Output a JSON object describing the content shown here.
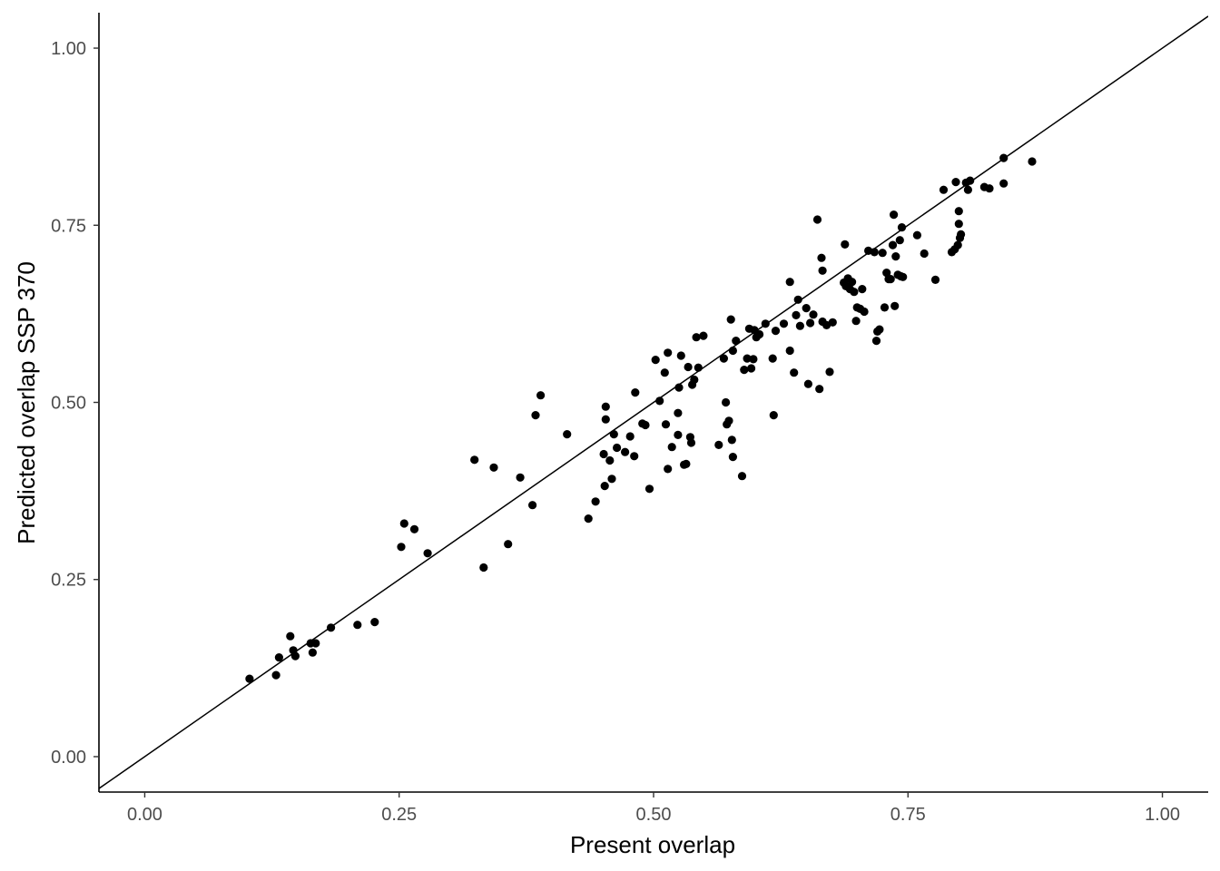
{
  "chart_data": {
    "type": "scatter",
    "title": "",
    "xlabel": "Present overlap",
    "ylabel": "Predicted overlap SSP 370",
    "xlim": [
      -0.045,
      1.045
    ],
    "ylim": [
      -0.05,
      1.05
    ],
    "x_ticks": [
      0,
      0.25,
      0.5,
      0.75,
      1
    ],
    "x_tick_labels": [
      "0.00",
      "0.25",
      "0.50",
      "0.75",
      "1.00"
    ],
    "y_ticks": [
      0,
      0.25,
      0.5,
      0.75,
      1
    ],
    "y_tick_labels": [
      "0.00",
      "0.25",
      "0.50",
      "0.75",
      "1.00"
    ],
    "reference_line": {
      "slope": 1,
      "intercept": 0
    },
    "grid": false,
    "point_color": "#000000",
    "points": [
      [
        0.103,
        0.11
      ],
      [
        0.129,
        0.115
      ],
      [
        0.132,
        0.14
      ],
      [
        0.143,
        0.17
      ],
      [
        0.146,
        0.15
      ],
      [
        0.148,
        0.142
      ],
      [
        0.163,
        0.16
      ],
      [
        0.165,
        0.147
      ],
      [
        0.168,
        0.16
      ],
      [
        0.183,
        0.182
      ],
      [
        0.209,
        0.186
      ],
      [
        0.226,
        0.19
      ],
      [
        0.252,
        0.296
      ],
      [
        0.255,
        0.329
      ],
      [
        0.265,
        0.321
      ],
      [
        0.278,
        0.287
      ],
      [
        0.324,
        0.419
      ],
      [
        0.333,
        0.267
      ],
      [
        0.343,
        0.408
      ],
      [
        0.357,
        0.3
      ],
      [
        0.369,
        0.394
      ],
      [
        0.381,
        0.355
      ],
      [
        0.384,
        0.482
      ],
      [
        0.389,
        0.51
      ],
      [
        0.415,
        0.455
      ],
      [
        0.436,
        0.336
      ],
      [
        0.443,
        0.36
      ],
      [
        0.451,
        0.427
      ],
      [
        0.452,
        0.382
      ],
      [
        0.453,
        0.494
      ],
      [
        0.453,
        0.476
      ],
      [
        0.457,
        0.418
      ],
      [
        0.459,
        0.392
      ],
      [
        0.461,
        0.455
      ],
      [
        0.464,
        0.436
      ],
      [
        0.472,
        0.43
      ],
      [
        0.477,
        0.452
      ],
      [
        0.481,
        0.424
      ],
      [
        0.482,
        0.514
      ],
      [
        0.489,
        0.47
      ],
      [
        0.492,
        0.468
      ],
      [
        0.496,
        0.378
      ],
      [
        0.502,
        0.56
      ],
      [
        0.506,
        0.502
      ],
      [
        0.511,
        0.542
      ],
      [
        0.512,
        0.469
      ],
      [
        0.514,
        0.57
      ],
      [
        0.514,
        0.406
      ],
      [
        0.518,
        0.437
      ],
      [
        0.524,
        0.485
      ],
      [
        0.524,
        0.454
      ],
      [
        0.525,
        0.521
      ],
      [
        0.527,
        0.566
      ],
      [
        0.53,
        0.412
      ],
      [
        0.532,
        0.413
      ],
      [
        0.534,
        0.55
      ],
      [
        0.536,
        0.451
      ],
      [
        0.537,
        0.443
      ],
      [
        0.538,
        0.525
      ],
      [
        0.54,
        0.532
      ],
      [
        0.542,
        0.592
      ],
      [
        0.544,
        0.549
      ],
      [
        0.549,
        0.594
      ],
      [
        0.564,
        0.44
      ],
      [
        0.569,
        0.562
      ],
      [
        0.571,
        0.5
      ],
      [
        0.572,
        0.469
      ],
      [
        0.574,
        0.474
      ],
      [
        0.576,
        0.617
      ],
      [
        0.577,
        0.447
      ],
      [
        0.578,
        0.573
      ],
      [
        0.578,
        0.423
      ],
      [
        0.581,
        0.587
      ],
      [
        0.587,
        0.396
      ],
      [
        0.589,
        0.546
      ],
      [
        0.592,
        0.562
      ],
      [
        0.594,
        0.604
      ],
      [
        0.596,
        0.548
      ],
      [
        0.598,
        0.561
      ],
      [
        0.599,
        0.602
      ],
      [
        0.601,
        0.592
      ],
      [
        0.604,
        0.596
      ],
      [
        0.61,
        0.611
      ],
      [
        0.617,
        0.562
      ],
      [
        0.618,
        0.482
      ],
      [
        0.62,
        0.601
      ],
      [
        0.628,
        0.611
      ],
      [
        0.634,
        0.67
      ],
      [
        0.634,
        0.573
      ],
      [
        0.638,
        0.542
      ],
      [
        0.64,
        0.623
      ],
      [
        0.642,
        0.645
      ],
      [
        0.644,
        0.608
      ],
      [
        0.65,
        0.633
      ],
      [
        0.652,
        0.526
      ],
      [
        0.654,
        0.612
      ],
      [
        0.657,
        0.624
      ],
      [
        0.661,
        0.758
      ],
      [
        0.663,
        0.519
      ],
      [
        0.665,
        0.704
      ],
      [
        0.666,
        0.686
      ],
      [
        0.666,
        0.614
      ],
      [
        0.67,
        0.609
      ],
      [
        0.673,
        0.543
      ],
      [
        0.676,
        0.613
      ],
      [
        0.687,
        0.669
      ],
      [
        0.688,
        0.723
      ],
      [
        0.689,
        0.664
      ],
      [
        0.691,
        0.675
      ],
      [
        0.693,
        0.66
      ],
      [
        0.695,
        0.67
      ],
      [
        0.697,
        0.656
      ],
      [
        0.699,
        0.615
      ],
      [
        0.7,
        0.634
      ],
      [
        0.703,
        0.632
      ],
      [
        0.705,
        0.66
      ],
      [
        0.707,
        0.628
      ],
      [
        0.711,
        0.714
      ],
      [
        0.717,
        0.712
      ],
      [
        0.719,
        0.587
      ],
      [
        0.72,
        0.6
      ],
      [
        0.722,
        0.603
      ],
      [
        0.725,
        0.711
      ],
      [
        0.727,
        0.634
      ],
      [
        0.729,
        0.683
      ],
      [
        0.731,
        0.674
      ],
      [
        0.733,
        0.674
      ],
      [
        0.735,
        0.722
      ],
      [
        0.736,
        0.765
      ],
      [
        0.737,
        0.636
      ],
      [
        0.738,
        0.706
      ],
      [
        0.74,
        0.68
      ],
      [
        0.742,
        0.729
      ],
      [
        0.743,
        0.678
      ],
      [
        0.744,
        0.747
      ],
      [
        0.745,
        0.677
      ],
      [
        0.759,
        0.736
      ],
      [
        0.766,
        0.71
      ],
      [
        0.777,
        0.673
      ],
      [
        0.785,
        0.8
      ],
      [
        0.793,
        0.712
      ],
      [
        0.796,
        0.716
      ],
      [
        0.797,
        0.811
      ],
      [
        0.799,
        0.722
      ],
      [
        0.8,
        0.77
      ],
      [
        0.8,
        0.752
      ],
      [
        0.801,
        0.732
      ],
      [
        0.802,
        0.737
      ],
      [
        0.807,
        0.81
      ],
      [
        0.809,
        0.8
      ],
      [
        0.811,
        0.813
      ],
      [
        0.825,
        0.804
      ],
      [
        0.83,
        0.802
      ],
      [
        0.844,
        0.845
      ],
      [
        0.844,
        0.809
      ],
      [
        0.872,
        0.84
      ]
    ]
  }
}
